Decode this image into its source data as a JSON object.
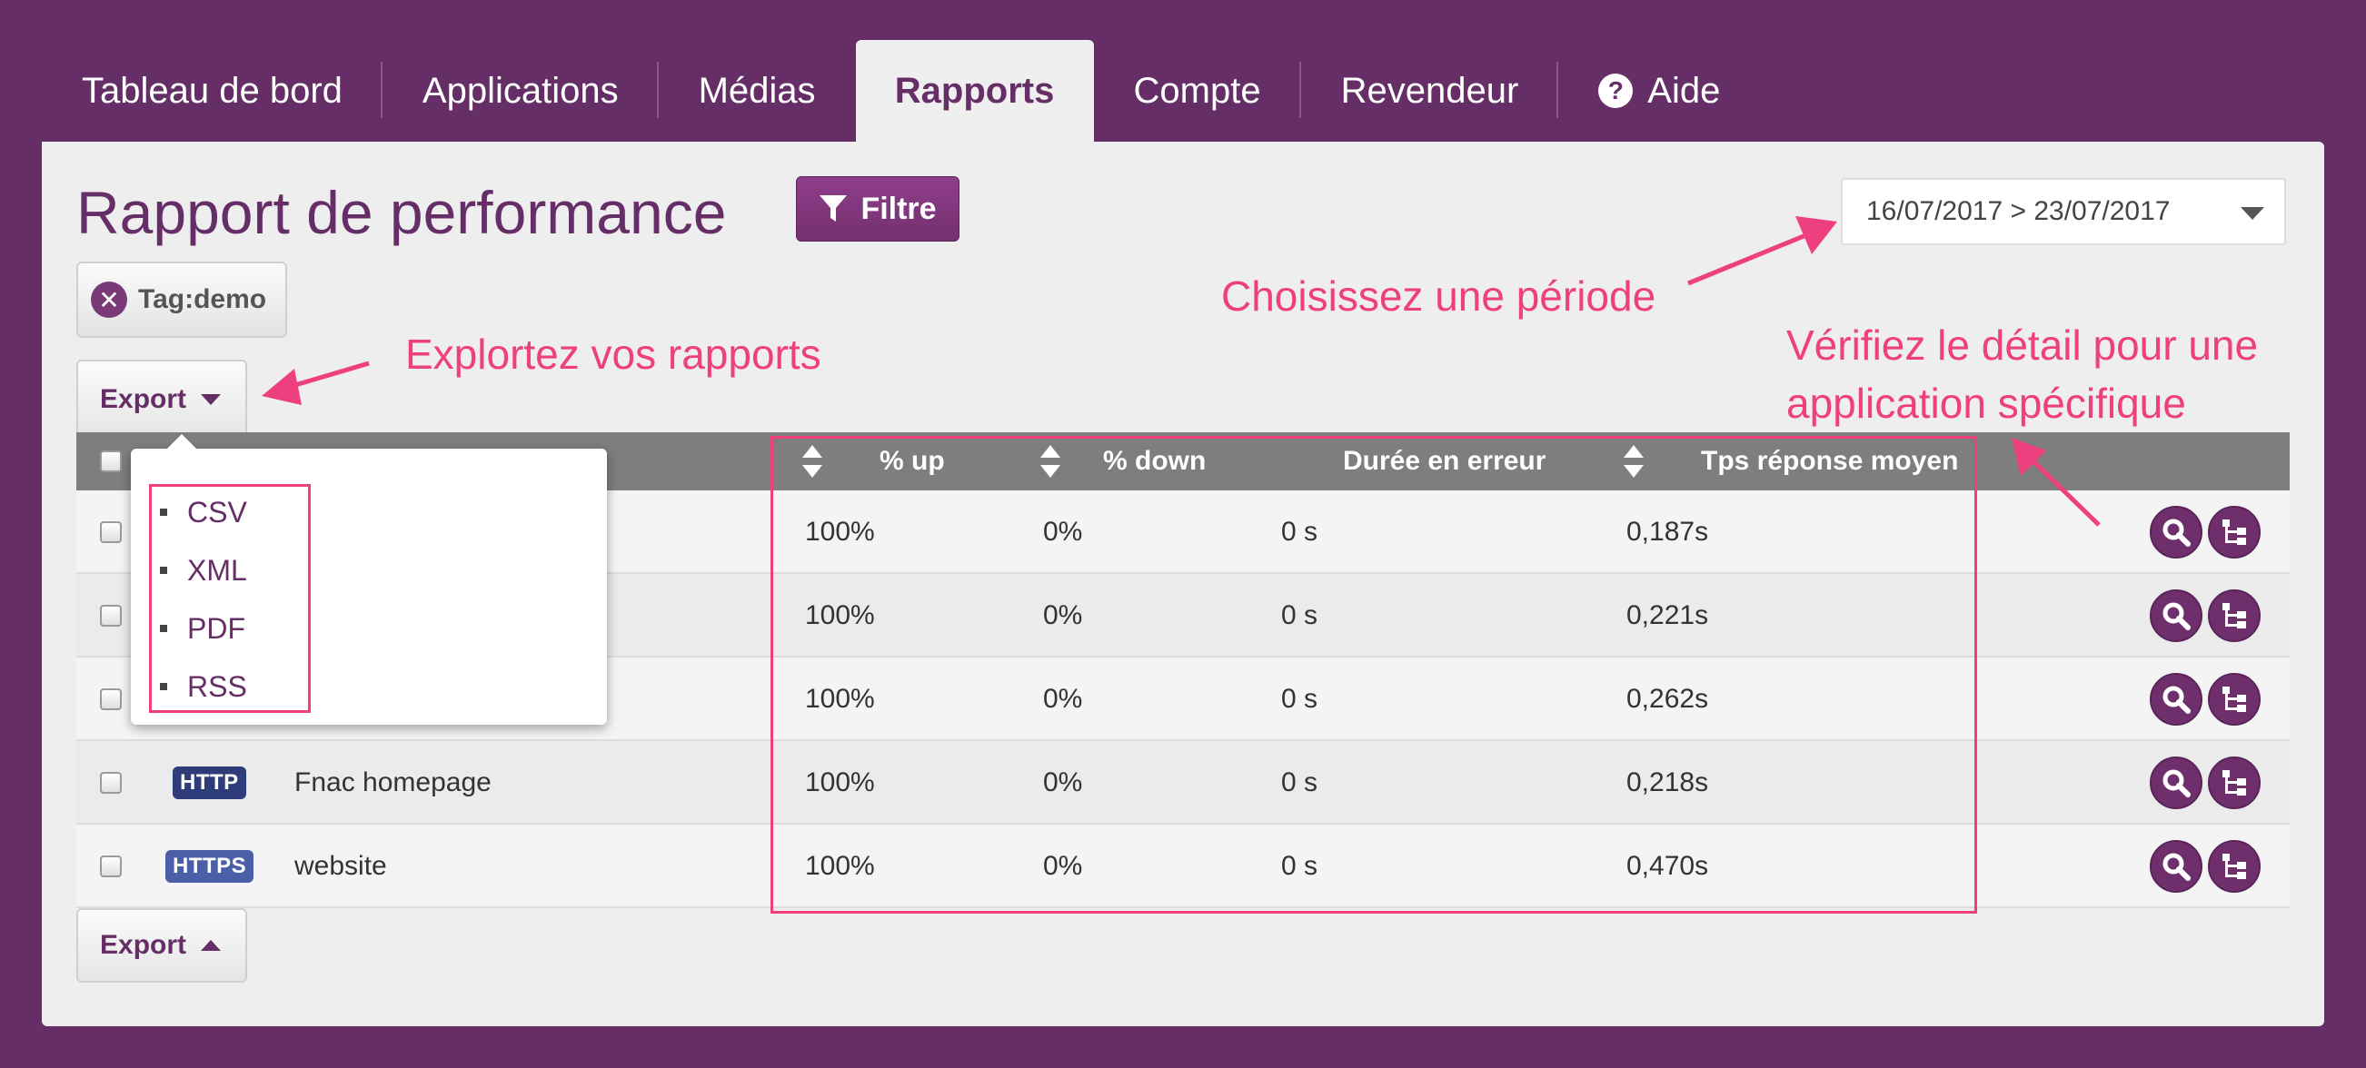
{
  "nav": {
    "items": [
      {
        "label": "Tableau de bord",
        "active": false
      },
      {
        "label": "Applications",
        "active": false
      },
      {
        "label": "Médias",
        "active": false
      },
      {
        "label": "Rapports",
        "active": true
      },
      {
        "label": "Compte",
        "active": false
      },
      {
        "label": "Revendeur",
        "active": false
      },
      {
        "label": "Aide",
        "active": false,
        "icon": "help-circle-icon",
        "icon_glyph": "?"
      }
    ]
  },
  "page": {
    "title": "Rapport de performance",
    "filter_label": "Filtre",
    "date_range": "16/07/2017 > 23/07/2017",
    "tag_chip": "Tag:demo",
    "tag_close_glyph": "✕"
  },
  "export": {
    "label": "Export",
    "options": [
      "CSV",
      "XML",
      "PDF",
      "RSS"
    ]
  },
  "table": {
    "columns": {
      "up": "% up",
      "down": "% down",
      "error_duration": "Durée en erreur",
      "avg_response": "Tps réponse moyen"
    },
    "rows": [
      {
        "type": "",
        "name": "",
        "up": "100%",
        "down": "0%",
        "error_duration": "0 s",
        "avg_response": "0,187s"
      },
      {
        "type": "",
        "name": "",
        "up": "100%",
        "down": "0%",
        "error_duration": "0 s",
        "avg_response": "0,221s"
      },
      {
        "type": "",
        "name": "",
        "up": "100%",
        "down": "0%",
        "error_duration": "0 s",
        "avg_response": "0,262s"
      },
      {
        "type": "HTTP",
        "type_color": "#2e3d7a",
        "name": "Fnac homepage",
        "up": "100%",
        "down": "0%",
        "error_duration": "0 s",
        "avg_response": "0,218s"
      },
      {
        "type": "HTTPS",
        "type_color": "#4a5fa8",
        "name": "website",
        "up": "100%",
        "down": "0%",
        "error_duration": "0 s",
        "avg_response": "0,470s"
      }
    ]
  },
  "annotations": {
    "period": "Choisissez une période",
    "explore": "Explortez vos rapports",
    "detail_line1": "Vérifiez le détail pour une",
    "detail_line2": "application spécifique",
    "color": "#ee3f7f"
  },
  "colors": {
    "brand_purple": "#652e66",
    "header_gray": "#7e7e7e",
    "panel_bg": "#eeeeee"
  }
}
